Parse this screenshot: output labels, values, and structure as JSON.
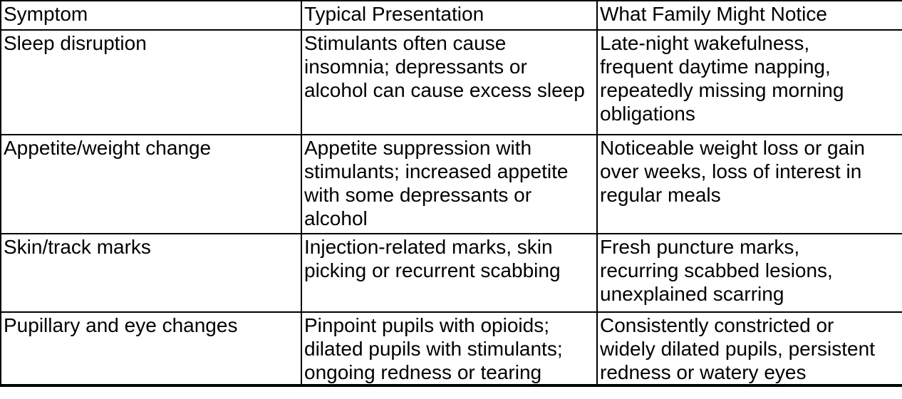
{
  "table": {
    "columns": [
      "Symptom",
      "Typical Presentation",
      "What Family Might Notice"
    ],
    "rows": [
      [
        "Sleep disruption",
        "Stimulants often cause\ninsomnia; depressants or\nalcohol can cause excess sleep",
        "Late-night wakefulness,\nfrequent daytime napping,\nrepeatedly missing morning\nobligations"
      ],
      [
        "Appetite/weight change",
        "Appetite suppression with\nstimulants; increased appetite\nwith some depressants or\nalcohol",
        "Noticeable weight loss or gain\nover weeks, loss of interest in\nregular meals"
      ],
      [
        "Skin/track marks",
        "Injection-related marks, skin\npicking or recurrent scabbing",
        "Fresh puncture marks,\nrecurring scabbed lesions,\nunexplained scarring"
      ],
      [
        "Pupillary and eye changes",
        "Pinpoint pupils with opioids;\ndilated pupils with stimulants;\nongoing redness or tearing",
        "Consistently constricted or\nwidely dilated pupils, persistent\nredness or watery eyes"
      ]
    ],
    "colors": {
      "border": "#000000",
      "text": "#000000",
      "background": "#ffffff"
    }
  }
}
